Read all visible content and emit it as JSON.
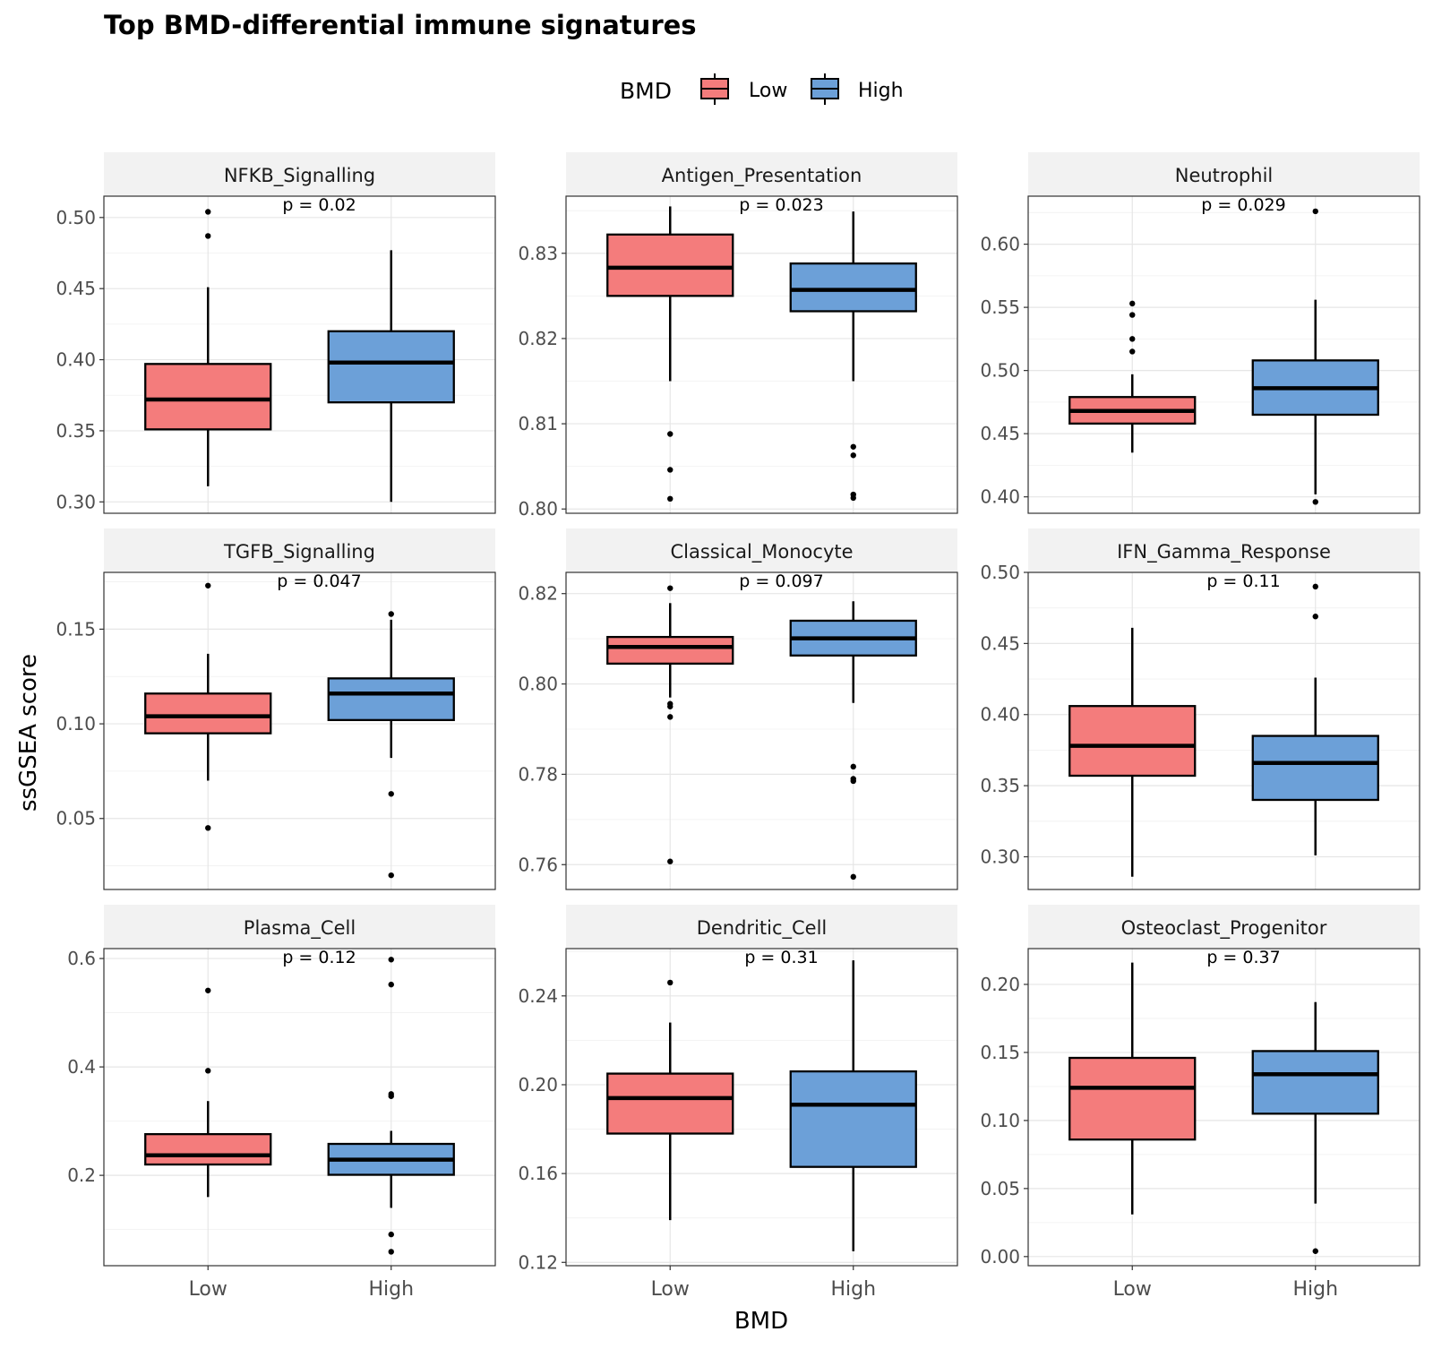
{
  "chart_data": {
    "type": "box",
    "title": "Top BMD-differential immune signatures",
    "xlabel": "BMD",
    "ylabel": "ssGSEA score",
    "legend": {
      "title": "BMD",
      "position": "top",
      "entries": [
        {
          "label": "Low",
          "color": "#F47C7C"
        },
        {
          "label": "High",
          "color": "#6CA0D8"
        }
      ]
    },
    "categories": [
      "Low",
      "High"
    ],
    "grid": true,
    "facets": [
      {
        "name": "NFKB_Signalling",
        "pvalue": "p = 0.02",
        "ylim": [
          0.292,
          0.515
        ],
        "ticks": [
          0.3,
          0.35,
          0.4,
          0.45,
          0.5
        ],
        "tick_labels": [
          "0.30",
          "0.35",
          "0.40",
          "0.45",
          "0.50"
        ],
        "boxes": [
          {
            "group": "Low",
            "whisker_low": 0.311,
            "q1": 0.351,
            "median": 0.372,
            "q3": 0.397,
            "whisker_high": 0.451,
            "outliers": [
              0.487,
              0.504
            ]
          },
          {
            "group": "High",
            "whisker_low": 0.3,
            "q1": 0.37,
            "median": 0.398,
            "q3": 0.42,
            "whisker_high": 0.477,
            "outliers": []
          }
        ]
      },
      {
        "name": "Antigen_Presentation",
        "pvalue": "p = 0.023",
        "ylim": [
          0.7995,
          0.8367
        ],
        "ticks": [
          0.8,
          0.81,
          0.82,
          0.83
        ],
        "tick_labels": [
          "0.80",
          "0.81",
          "0.82",
          "0.83"
        ],
        "boxes": [
          {
            "group": "Low",
            "whisker_low": 0.815,
            "q1": 0.825,
            "median": 0.8283,
            "q3": 0.8322,
            "whisker_high": 0.8355,
            "outliers": [
              0.8088,
              0.8046,
              0.8012
            ]
          },
          {
            "group": "High",
            "whisker_low": 0.815,
            "q1": 0.8232,
            "median": 0.8257,
            "q3": 0.8288,
            "whisker_high": 0.8349,
            "outliers": [
              0.8073,
              0.8063,
              0.8017,
              0.8013
            ]
          }
        ]
      },
      {
        "name": "Neutrophil",
        "pvalue": "p = 0.029",
        "ylim": [
          0.387,
          0.638
        ],
        "ticks": [
          0.4,
          0.45,
          0.5,
          0.55,
          0.6
        ],
        "tick_labels": [
          "0.40",
          "0.45",
          "0.50",
          "0.55",
          "0.60"
        ],
        "boxes": [
          {
            "group": "Low",
            "whisker_low": 0.435,
            "q1": 0.458,
            "median": 0.468,
            "q3": 0.479,
            "whisker_high": 0.497,
            "outliers": [
              0.515,
              0.525,
              0.544,
              0.553
            ]
          },
          {
            "group": "High",
            "whisker_low": 0.402,
            "q1": 0.465,
            "median": 0.486,
            "q3": 0.508,
            "whisker_high": 0.556,
            "outliers": [
              0.396,
              0.626
            ]
          }
        ]
      },
      {
        "name": "TGFB_Signalling",
        "pvalue": "p = 0.047",
        "ylim": [
          0.0125,
          0.18
        ],
        "ticks": [
          0.05,
          0.1,
          0.15
        ],
        "tick_labels": [
          "0.05",
          "0.10",
          "0.15"
        ],
        "boxes": [
          {
            "group": "Low",
            "whisker_low": 0.07,
            "q1": 0.095,
            "median": 0.104,
            "q3": 0.116,
            "whisker_high": 0.137,
            "outliers": [
              0.045,
              0.173
            ]
          },
          {
            "group": "High",
            "whisker_low": 0.082,
            "q1": 0.102,
            "median": 0.116,
            "q3": 0.124,
            "whisker_high": 0.155,
            "outliers": [
              0.063,
              0.02,
              0.158
            ]
          }
        ]
      },
      {
        "name": "Classical_Monocyte",
        "pvalue": "p = 0.097",
        "ylim": [
          0.7545,
          0.8247
        ],
        "ticks": [
          0.76,
          0.78,
          0.8,
          0.82
        ],
        "tick_labels": [
          "0.76",
          "0.78",
          "0.80",
          "0.82"
        ],
        "boxes": [
          {
            "group": "Low",
            "whisker_low": 0.797,
            "q1": 0.8045,
            "median": 0.8082,
            "q3": 0.8104,
            "whisker_high": 0.8179,
            "outliers": [
              0.8212,
              0.7956,
              0.795,
              0.7927,
              0.7607
            ]
          },
          {
            "group": "High",
            "whisker_low": 0.7958,
            "q1": 0.8063,
            "median": 0.8101,
            "q3": 0.814,
            "whisker_high": 0.8183,
            "outliers": [
              0.7817,
              0.779,
              0.7785,
              0.7573
            ]
          }
        ]
      },
      {
        "name": "IFN_Gamma_Response",
        "pvalue": "p = 0.11",
        "ylim": [
          0.277,
          0.5
        ],
        "ticks": [
          0.3,
          0.35,
          0.4,
          0.45,
          0.5
        ],
        "tick_labels": [
          "0.30",
          "0.35",
          "0.40",
          "0.45",
          "0.50"
        ],
        "boxes": [
          {
            "group": "Low",
            "whisker_low": 0.286,
            "q1": 0.357,
            "median": 0.378,
            "q3": 0.406,
            "whisker_high": 0.461,
            "outliers": []
          },
          {
            "group": "High",
            "whisker_low": 0.301,
            "q1": 0.34,
            "median": 0.366,
            "q3": 0.385,
            "whisker_high": 0.426,
            "outliers": [
              0.469,
              0.49
            ]
          }
        ]
      },
      {
        "name": "Plasma_Cell",
        "pvalue": "p = 0.12",
        "ylim": [
          0.0333,
          0.6183
        ],
        "ticks": [
          0.2,
          0.4,
          0.6
        ],
        "tick_labels": [
          "0.2",
          "0.4",
          "0.6"
        ],
        "boxes": [
          {
            "group": "Low",
            "whisker_low": 0.16,
            "q1": 0.22,
            "median": 0.237,
            "q3": 0.276,
            "whisker_high": 0.337,
            "outliers": [
              0.393,
              0.541
            ]
          },
          {
            "group": "High",
            "whisker_low": 0.14,
            "q1": 0.201,
            "median": 0.229,
            "q3": 0.258,
            "whisker_high": 0.282,
            "outliers": [
              0.598,
              0.552,
              0.35,
              0.346,
              0.091,
              0.059
            ]
          }
        ]
      },
      {
        "name": "Dendritic_Cell",
        "pvalue": "p = 0.31",
        "ylim": [
          0.1185,
          0.2613
        ],
        "ticks": [
          0.12,
          0.16,
          0.2,
          0.24
        ],
        "tick_labels": [
          "0.12",
          "0.16",
          "0.20",
          "0.24"
        ],
        "boxes": [
          {
            "group": "Low",
            "whisker_low": 0.139,
            "q1": 0.178,
            "median": 0.194,
            "q3": 0.205,
            "whisker_high": 0.228,
            "outliers": [
              0.246
            ]
          },
          {
            "group": "High",
            "whisker_low": 0.125,
            "q1": 0.163,
            "median": 0.191,
            "q3": 0.206,
            "whisker_high": 0.256,
            "outliers": []
          }
        ]
      },
      {
        "name": "Osteoclast_Progenitor",
        "pvalue": "p = 0.37",
        "ylim": [
          -0.0067,
          0.2263
        ],
        "ticks": [
          0.0,
          0.05,
          0.1,
          0.15,
          0.2
        ],
        "tick_labels": [
          "0.00",
          "0.05",
          "0.10",
          "0.15",
          "0.20"
        ],
        "boxes": [
          {
            "group": "Low",
            "whisker_low": 0.031,
            "q1": 0.086,
            "median": 0.124,
            "q3": 0.146,
            "whisker_high": 0.216,
            "outliers": []
          },
          {
            "group": "High",
            "whisker_low": 0.039,
            "q1": 0.105,
            "median": 0.134,
            "q3": 0.151,
            "whisker_high": 0.187,
            "outliers": [
              0.004
            ]
          }
        ]
      }
    ]
  }
}
